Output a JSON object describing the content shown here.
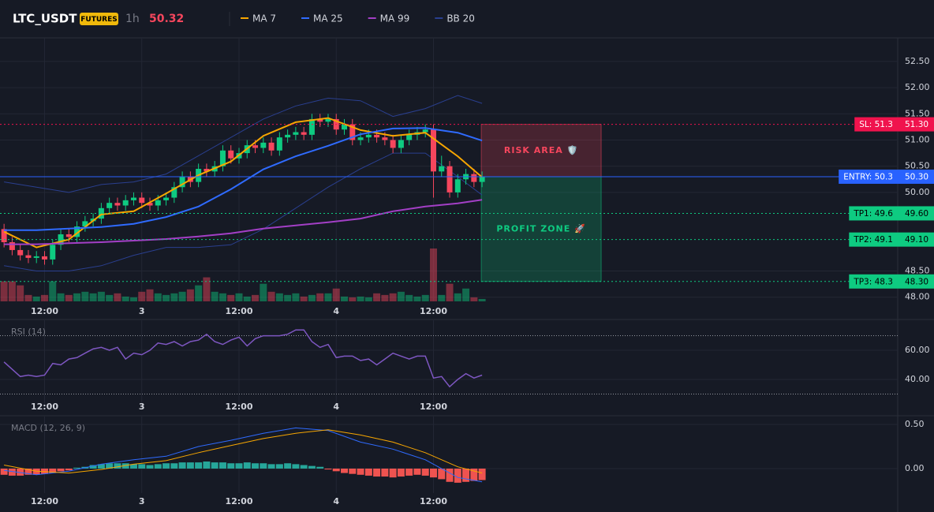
{
  "header": {
    "symbol": "LTC_USDT",
    "badge": "FUTURES",
    "interval": "1h",
    "price": 50.32
  },
  "chart_data": [
    {
      "type": "candlestick",
      "x": [
        0,
        1,
        2,
        3,
        4,
        5,
        6,
        7,
        8,
        9,
        10,
        11,
        12,
        13,
        14,
        15,
        16,
        17,
        18,
        19,
        20,
        21,
        22,
        23,
        24,
        25,
        26,
        27,
        28,
        29,
        30,
        31,
        32,
        33,
        34,
        35,
        36,
        37,
        38,
        39,
        40,
        41,
        42,
        43,
        44,
        45,
        46,
        47,
        48,
        49,
        50,
        51,
        52,
        53,
        54,
        55,
        56,
        57,
        58,
        59
      ],
      "open": [
        49.3,
        49.05,
        48.9,
        48.8,
        48.75,
        48.78,
        48.72,
        49.0,
        49.2,
        49.15,
        49.35,
        49.45,
        49.5,
        49.7,
        49.8,
        49.75,
        49.85,
        49.9,
        49.8,
        49.75,
        49.85,
        49.9,
        50.1,
        50.3,
        50.2,
        50.45,
        50.4,
        50.5,
        50.8,
        50.65,
        50.75,
        50.9,
        50.85,
        50.95,
        50.8,
        51.05,
        51.1,
        51.15,
        51.1,
        51.4,
        51.35,
        51.4,
        51.2,
        51.3,
        51.0,
        51.05,
        51.1,
        51.05,
        51.0,
        50.85,
        51.0,
        51.1,
        51.15,
        51.2,
        50.4,
        50.5,
        50.0,
        50.25,
        50.35,
        50.2
      ],
      "high": [
        49.4,
        49.15,
        49.0,
        48.9,
        48.88,
        48.88,
        49.1,
        49.3,
        49.3,
        49.45,
        49.55,
        49.6,
        49.8,
        49.9,
        49.9,
        49.95,
        50.0,
        50.0,
        49.9,
        49.95,
        50.0,
        50.2,
        50.4,
        50.4,
        50.55,
        50.55,
        50.6,
        50.9,
        50.9,
        50.85,
        51.0,
        51.0,
        51.05,
        51.05,
        51.15,
        51.2,
        51.25,
        51.25,
        51.5,
        51.5,
        51.5,
        51.5,
        51.4,
        51.4,
        51.15,
        51.2,
        51.2,
        51.15,
        51.1,
        51.1,
        51.2,
        51.25,
        51.3,
        51.3,
        50.7,
        50.6,
        50.35,
        50.45,
        50.45,
        50.4
      ],
      "low": [
        48.95,
        48.8,
        48.7,
        48.65,
        48.65,
        48.62,
        48.62,
        48.9,
        49.05,
        49.05,
        49.25,
        49.35,
        49.4,
        49.6,
        49.65,
        49.65,
        49.75,
        49.7,
        49.65,
        49.65,
        49.75,
        49.8,
        50.0,
        50.1,
        50.1,
        50.3,
        50.3,
        50.4,
        50.55,
        50.55,
        50.65,
        50.75,
        50.75,
        50.7,
        50.7,
        50.95,
        51.0,
        51.0,
        51.0,
        51.25,
        51.25,
        51.1,
        51.1,
        50.9,
        50.9,
        50.95,
        50.95,
        50.9,
        50.75,
        50.75,
        50.9,
        51.0,
        51.05,
        49.9,
        50.3,
        49.9,
        49.9,
        50.15,
        50.1,
        50.1
      ],
      "close": [
        49.05,
        48.9,
        48.8,
        48.75,
        48.78,
        48.72,
        49.0,
        49.2,
        49.15,
        49.35,
        49.45,
        49.5,
        49.7,
        49.8,
        49.75,
        49.85,
        49.9,
        49.8,
        49.75,
        49.85,
        49.9,
        50.1,
        50.3,
        50.2,
        50.45,
        50.4,
        50.5,
        50.8,
        50.65,
        50.75,
        50.9,
        50.85,
        50.95,
        50.8,
        51.05,
        51.1,
        51.15,
        51.1,
        51.4,
        51.35,
        51.4,
        51.2,
        51.3,
        51.0,
        51.05,
        51.1,
        51.05,
        51.0,
        50.85,
        51.0,
        51.1,
        51.15,
        51.2,
        50.4,
        50.5,
        50.0,
        50.25,
        50.35,
        50.2,
        50.3
      ],
      "volume": [
        25,
        25,
        20,
        8,
        6,
        8,
        25,
        10,
        8,
        10,
        12,
        10,
        12,
        8,
        10,
        6,
        5,
        12,
        15,
        10,
        8,
        10,
        12,
        15,
        20,
        30,
        12,
        10,
        8,
        10,
        6,
        8,
        22,
        12,
        10,
        8,
        10,
        6,
        8,
        10,
        10,
        16,
        6,
        5,
        6,
        5,
        10,
        8,
        10,
        12,
        8,
        6,
        8,
        66,
        8,
        22,
        10,
        16,
        5,
        3
      ],
      "up_color": "#0ecb81",
      "down_color": "#f6465d",
      "series": [
        {
          "name": "MA 7",
          "color": "#f7a600",
          "x": [
            0,
            4,
            8,
            12,
            16,
            20,
            24,
            28,
            32,
            36,
            40,
            44,
            48,
            52,
            56,
            59
          ],
          "values": [
            49.25,
            48.95,
            49.1,
            49.58,
            49.64,
            49.98,
            50.33,
            50.59,
            51.08,
            51.34,
            51.42,
            51.19,
            51.08,
            51.14,
            50.69,
            50.29
          ]
        },
        {
          "name": "MA 25",
          "color": "#2f6bff",
          "x": [
            0,
            4,
            8,
            12,
            16,
            20,
            24,
            28,
            32,
            36,
            40,
            44,
            48,
            52,
            56,
            59
          ],
          "values": [
            49.28,
            49.28,
            49.31,
            49.34,
            49.4,
            49.53,
            49.73,
            50.06,
            50.44,
            50.69,
            50.89,
            51.11,
            51.22,
            51.23,
            51.14,
            50.99
          ]
        },
        {
          "name": "MA 99",
          "color": "#a33fc6",
          "x": [
            0,
            4,
            8,
            12,
            16,
            20,
            24,
            28,
            32,
            36,
            40,
            44,
            48,
            52,
            56,
            59
          ],
          "values": [
            49.01,
            49.01,
            49.03,
            49.05,
            49.08,
            49.11,
            49.16,
            49.22,
            49.31,
            49.37,
            49.43,
            49.5,
            49.64,
            49.73,
            49.79,
            49.86
          ]
        },
        {
          "name": "BB 20",
          "color": "#2a3f8f",
          "x": [
            0,
            4,
            8,
            12,
            16,
            20,
            24,
            28,
            32,
            36,
            40,
            44,
            48,
            52,
            56,
            59
          ],
          "values": [
            50.2,
            50.1,
            50.0,
            50.15,
            50.2,
            50.35,
            50.7,
            51.05,
            51.4,
            51.65,
            51.8,
            51.75,
            51.45,
            51.6,
            51.85,
            51.7
          ],
          "lower": [
            48.6,
            48.5,
            48.5,
            48.6,
            48.8,
            48.95,
            48.95,
            49.0,
            49.3,
            49.7,
            50.1,
            50.45,
            50.75,
            50.75,
            50.3,
            49.95
          ]
        }
      ],
      "levels": [
        {
          "name": "SL: 51.3",
          "value": 51.3,
          "label": "51.30",
          "color": "#f0134d",
          "text_color": "#ffffff",
          "dash": true
        },
        {
          "name": "ENTRY: 50.3",
          "value": 50.3,
          "label": "50.30",
          "color": "#2962ff",
          "text_color": "#ffffff",
          "dash": false
        },
        {
          "name": "TP1: 49.6",
          "value": 49.6,
          "label": "49.60",
          "color": "#0ecb81",
          "text_color": "#000000",
          "dash": true
        },
        {
          "name": "TP2: 49.1",
          "value": 49.1,
          "label": "49.10",
          "color": "#0ecb81",
          "text_color": "#000000",
          "dash": true
        },
        {
          "name": "TP3: 48.3",
          "value": 48.3,
          "label": "48.30",
          "color": "#0ecb81",
          "text_color": "#000000",
          "dash": true
        }
      ],
      "zones": [
        {
          "label": "RISK AREA 🛡️",
          "from": 51.3,
          "to": 50.3,
          "x_range": [
            58.9,
            73.7
          ],
          "color": "#f6465d"
        },
        {
          "label": "PROFIT ZONE 🚀",
          "from": 50.3,
          "to": 48.3,
          "x_range": [
            58.9,
            73.7
          ],
          "color": "#0ecb81"
        }
      ],
      "xlim": [
        -0.5,
        110.3
      ],
      "xticks": [
        {
          "value": 5,
          "label": "12:00"
        },
        {
          "value": 17,
          "label": "3"
        },
        {
          "value": 29,
          "label": "12:00"
        },
        {
          "value": 41,
          "label": "4"
        },
        {
          "value": 53,
          "label": "12:00"
        }
      ],
      "ylim": [
        47.92,
        52.92
      ],
      "yticks": [
        {
          "value": 48,
          "label": "48.00"
        },
        {
          "value": 48.5,
          "label": "48.50"
        },
        {
          "value": 50,
          "label": "50.00"
        },
        {
          "value": 50.5,
          "label": "50.50"
        },
        {
          "value": 51,
          "label": "51.00"
        },
        {
          "value": 51.5,
          "label": "51.50"
        },
        {
          "value": 52,
          "label": "52.00"
        },
        {
          "value": 52.5,
          "label": "52.50"
        }
      ],
      "grid": true
    },
    {
      "type": "line",
      "title": "RSI (14)",
      "x": [
        0,
        1,
        2,
        3,
        4,
        5,
        6,
        7,
        8,
        9,
        10,
        11,
        12,
        13,
        14,
        15,
        16,
        17,
        18,
        19,
        20,
        21,
        22,
        23,
        24,
        25,
        26,
        27,
        28,
        29,
        30,
        31,
        32,
        33,
        34,
        35,
        36,
        37,
        38,
        39,
        40,
        41,
        42,
        43,
        44,
        45,
        46,
        47,
        48,
        49,
        50,
        51,
        52,
        53,
        54,
        55,
        56,
        57,
        58,
        59
      ],
      "values": [
        52,
        47,
        42,
        43,
        42,
        43,
        51,
        50,
        54,
        55,
        58,
        61,
        62,
        60,
        62,
        54,
        58,
        57,
        60,
        65,
        64,
        66,
        63,
        66,
        67,
        71,
        66,
        64,
        67,
        69,
        63,
        68,
        70,
        70,
        70,
        71,
        74,
        74,
        66,
        62,
        64,
        55,
        56,
        56,
        53,
        54,
        50,
        54,
        58,
        56,
        54,
        56,
        56,
        41,
        42,
        35,
        40,
        44,
        41,
        43
      ],
      "color": "#7e57c2",
      "levels": [
        30,
        70
      ],
      "xlim": [
        -0.5,
        110.3
      ],
      "xticks": [
        {
          "value": 5,
          "label": "12:00"
        },
        {
          "value": 17,
          "label": "3"
        },
        {
          "value": 29,
          "label": "12:00"
        },
        {
          "value": 41,
          "label": "4"
        },
        {
          "value": 53,
          "label": "12:00"
        }
      ],
      "ylim": [
        18.9,
        79.5
      ],
      "yticks": [
        {
          "value": 40,
          "label": "40.00"
        },
        {
          "value": 60,
          "label": "60.00"
        }
      ],
      "grid": true
    },
    {
      "type": "bar",
      "title": "MACD (12, 26, 9)",
      "x": [
        0,
        1,
        2,
        3,
        4,
        5,
        6,
        7,
        8,
        9,
        10,
        11,
        12,
        13,
        14,
        15,
        16,
        17,
        18,
        19,
        20,
        21,
        22,
        23,
        24,
        25,
        26,
        27,
        28,
        29,
        30,
        31,
        32,
        33,
        34,
        35,
        36,
        37,
        38,
        39,
        40,
        41,
        42,
        43,
        44,
        45,
        46,
        47,
        48,
        49,
        50,
        51,
        52,
        53,
        54,
        55,
        56,
        57,
        58,
        59
      ],
      "values": [
        -0.07,
        -0.08,
        -0.08,
        -0.07,
        -0.07,
        -0.06,
        -0.05,
        -0.03,
        -0.02,
        0.01,
        0.02,
        0.04,
        0.05,
        0.06,
        0.06,
        0.06,
        0.05,
        0.05,
        0.04,
        0.05,
        0.06,
        0.06,
        0.07,
        0.07,
        0.07,
        0.08,
        0.07,
        0.07,
        0.06,
        0.06,
        0.07,
        0.06,
        0.06,
        0.05,
        0.05,
        0.06,
        0.05,
        0.04,
        0.03,
        0.02,
        -0.01,
        -0.03,
        -0.05,
        -0.06,
        -0.07,
        -0.08,
        -0.09,
        -0.09,
        -0.1,
        -0.09,
        -0.08,
        -0.07,
        -0.08,
        -0.1,
        -0.12,
        -0.15,
        -0.16,
        -0.15,
        -0.14,
        -0.13
      ],
      "up_color": "#26a69a",
      "down_color": "#ef5350",
      "series": [
        {
          "color": "#2f6bff",
          "x": [
            0,
            4,
            8,
            12,
            16,
            20,
            24,
            28,
            32,
            36,
            40,
            44,
            48,
            52,
            56,
            59
          ],
          "values": [
            -0.02,
            -0.07,
            -0.03,
            0.05,
            0.1,
            0.14,
            0.25,
            0.32,
            0.4,
            0.46,
            0.43,
            0.3,
            0.22,
            0.1,
            -0.1,
            -0.15
          ]
        },
        {
          "color": "#f7a600",
          "x": [
            0,
            4,
            8,
            12,
            16,
            20,
            24,
            28,
            32,
            36,
            40,
            44,
            48,
            52,
            56,
            59
          ],
          "values": [
            0.04,
            -0.03,
            -0.05,
            -0.01,
            0.05,
            0.09,
            0.18,
            0.26,
            0.34,
            0.4,
            0.44,
            0.38,
            0.3,
            0.18,
            0.02,
            -0.05
          ]
        }
      ],
      "xlim": [
        -0.5,
        110.3
      ],
      "xticks": [
        {
          "value": 5,
          "label": "12:00"
        },
        {
          "value": 17,
          "label": "3"
        },
        {
          "value": 29,
          "label": "12:00"
        },
        {
          "value": 41,
          "label": "4"
        },
        {
          "value": 53,
          "label": "12:00"
        }
      ],
      "ylim": [
        -0.277,
        0.571
      ],
      "yticks": [
        {
          "value": 0,
          "label": "0.00"
        },
        {
          "value": 0.5,
          "label": "0.50"
        }
      ],
      "grid": true
    }
  ]
}
